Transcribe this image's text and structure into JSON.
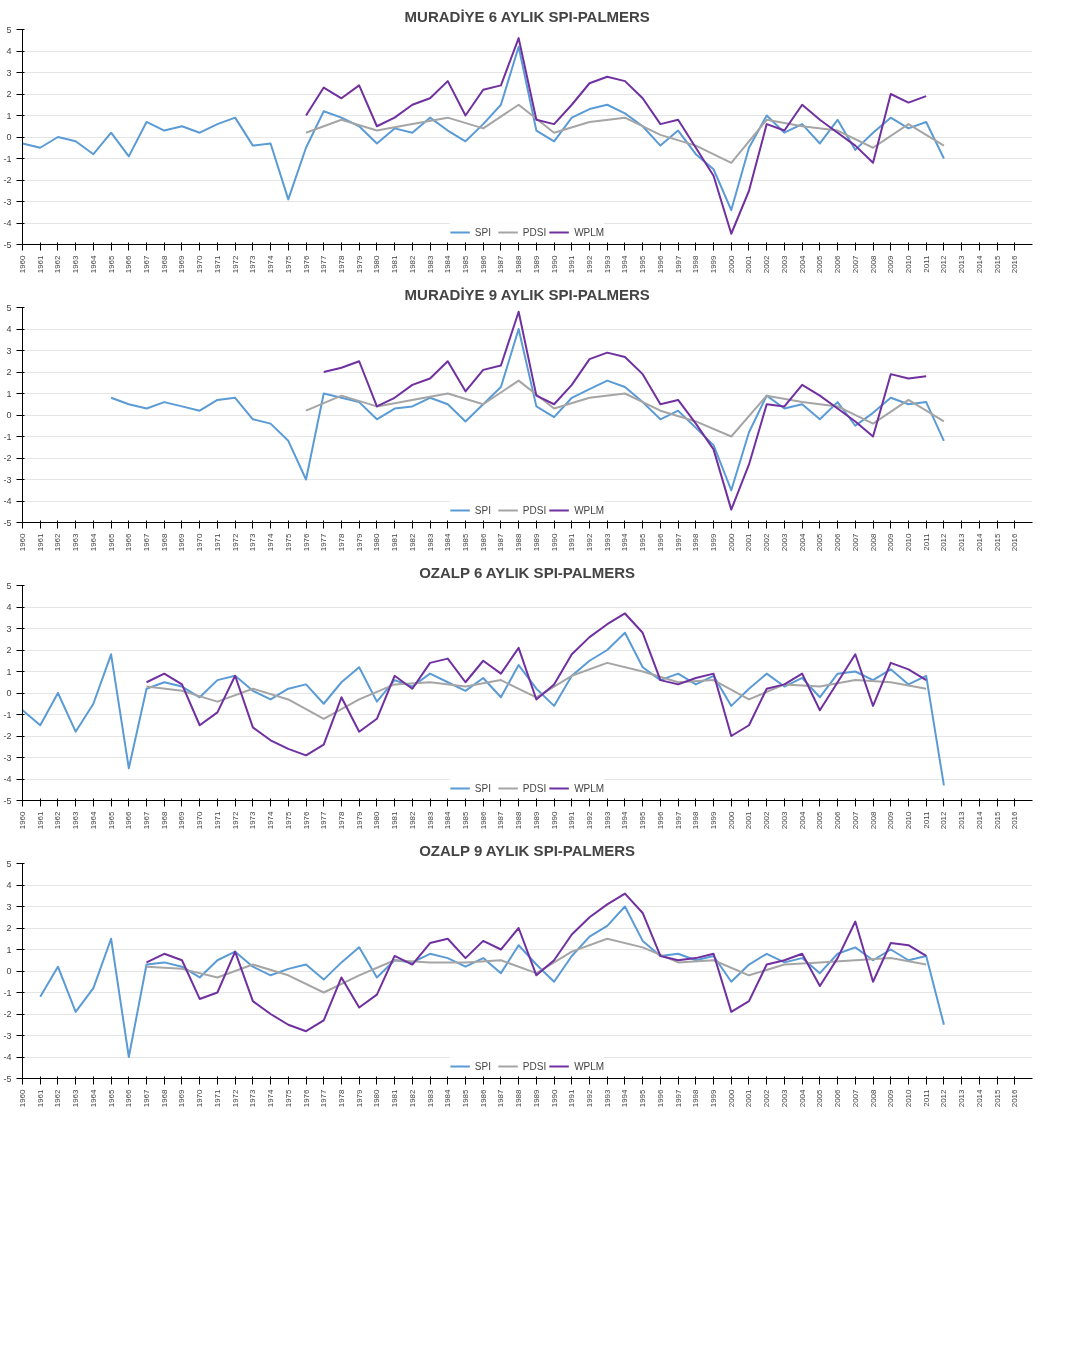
{
  "chart_data": [
    {
      "type": "line",
      "title": "MURADİYE 6 AYLIK SPI-PALMERS",
      "xlim": [
        1960,
        2017
      ],
      "xticks": [
        1960,
        1961,
        1962,
        1963,
        1964,
        1965,
        1966,
        1967,
        1968,
        1969,
        1970,
        1971,
        1972,
        1973,
        1974,
        1975,
        1976,
        1977,
        1978,
        1979,
        1980,
        1981,
        1982,
        1983,
        1984,
        1985,
        1986,
        1987,
        1988,
        1989,
        1990,
        1991,
        1992,
        1993,
        1994,
        1995,
        1996,
        1997,
        1998,
        1999,
        2000,
        2001,
        2002,
        2003,
        2004,
        2005,
        2006,
        2007,
        2008,
        2009,
        2010,
        2011,
        2012,
        2013,
        2014,
        2015,
        2016
      ],
      "ylim": [
        -5,
        5
      ],
      "yticks": [
        -5,
        -4,
        -3,
        -2,
        -1,
        0,
        1,
        2,
        3,
        4,
        5
      ],
      "grid": "y",
      "legend": "bottom",
      "series": [
        {
          "name": "SPI",
          "color": "#5b9bd5",
          "x": [
            1960,
            1961,
            1962,
            1963,
            1964,
            1965,
            1966,
            1967,
            1968,
            1969,
            1970,
            1971,
            1972,
            1973,
            1974,
            1975,
            1976,
            1977,
            1978,
            1979,
            1980,
            1981,
            1982,
            1983,
            1984,
            1985,
            1986,
            1987,
            1988,
            1989,
            1990,
            1991,
            1992,
            1993,
            1994,
            1995,
            1996,
            1997,
            1998,
            1999,
            2000,
            2001,
            2002,
            2003,
            2004,
            2005,
            2006,
            2007,
            2008,
            2009,
            2010,
            2011,
            2012
          ],
          "values": [
            -0.3,
            -0.5,
            0.0,
            -0.2,
            -0.8,
            0.2,
            -0.9,
            0.7,
            0.3,
            0.5,
            0.2,
            0.6,
            0.9,
            -0.4,
            -0.3,
            -2.9,
            -0.5,
            1.2,
            0.9,
            0.5,
            -0.3,
            0.4,
            0.2,
            0.9,
            0.3,
            -0.2,
            0.6,
            1.5,
            4.2,
            0.3,
            -0.2,
            0.9,
            1.3,
            1.5,
            1.1,
            0.5,
            -0.4,
            0.3,
            -0.8,
            -1.5,
            -3.4,
            -0.5,
            1.0,
            0.2,
            0.6,
            -0.3,
            0.8,
            -0.6,
            0.2,
            0.9,
            0.4,
            0.7,
            -1.0
          ]
        },
        {
          "name": "PDSI",
          "color": "#a5a5a5",
          "x": [
            1976,
            1978,
            1980,
            1982,
            1984,
            1986,
            1988,
            1990,
            1992,
            1994,
            1996,
            1998,
            2000,
            2002,
            2004,
            2006,
            2008,
            2010,
            2012
          ],
          "values": [
            0.2,
            0.8,
            0.3,
            0.6,
            0.9,
            0.4,
            1.5,
            0.2,
            0.7,
            0.9,
            0.1,
            -0.4,
            -1.2,
            0.8,
            0.5,
            0.3,
            -0.5,
            0.6,
            -0.4
          ]
        },
        {
          "name": "WPLM",
          "color": "#7030a0",
          "x": [
            1976,
            1977,
            1978,
            1979,
            1980,
            1981,
            1982,
            1983,
            1984,
            1985,
            1986,
            1987,
            1988,
            1989,
            1990,
            1991,
            1992,
            1993,
            1994,
            1995,
            1996,
            1997,
            1998,
            1999,
            2000,
            2001,
            2002,
            2003,
            2004,
            2005,
            2006,
            2007,
            2008,
            2009,
            2010,
            2011
          ],
          "values": [
            1.0,
            2.3,
            1.8,
            2.4,
            0.5,
            0.9,
            1.5,
            1.8,
            2.6,
            1.0,
            2.2,
            2.4,
            4.6,
            0.8,
            0.6,
            1.5,
            2.5,
            2.8,
            2.6,
            1.8,
            0.6,
            0.8,
            -0.5,
            -1.8,
            -4.5,
            -2.5,
            0.6,
            0.3,
            1.5,
            0.8,
            0.2,
            -0.4,
            -1.2,
            2.0,
            1.6,
            1.9
          ]
        }
      ]
    },
    {
      "type": "line",
      "title": "MURADİYE 9 AYLIK SPI-PALMERS",
      "xlim": [
        1960,
        2017
      ],
      "xticks": [
        1960,
        1961,
        1962,
        1963,
        1964,
        1965,
        1966,
        1967,
        1968,
        1969,
        1970,
        1971,
        1972,
        1973,
        1974,
        1975,
        1976,
        1977,
        1978,
        1979,
        1980,
        1981,
        1982,
        1983,
        1984,
        1985,
        1986,
        1987,
        1988,
        1989,
        1990,
        1991,
        1992,
        1993,
        1994,
        1995,
        1996,
        1997,
        1998,
        1999,
        2000,
        2001,
        2002,
        2003,
        2004,
        2005,
        2006,
        2007,
        2008,
        2009,
        2010,
        2011,
        2012,
        2013,
        2014,
        2015,
        2016
      ],
      "ylim": [
        -5,
        5
      ],
      "yticks": [
        -5,
        -4,
        -3,
        -2,
        -1,
        0,
        1,
        2,
        3,
        4,
        5
      ],
      "grid": "y",
      "legend": "bottom",
      "series": [
        {
          "name": "SPI",
          "color": "#5b9bd5",
          "x": [
            1965,
            1966,
            1967,
            1968,
            1969,
            1970,
            1971,
            1972,
            1973,
            1974,
            1975,
            1976,
            1977,
            1978,
            1979,
            1980,
            1981,
            1982,
            1983,
            1984,
            1985,
            1986,
            1987,
            1988,
            1989,
            1990,
            1991,
            1992,
            1993,
            1994,
            1995,
            1996,
            1997,
            1998,
            1999,
            2000,
            2001,
            2002,
            2003,
            2004,
            2005,
            2006,
            2007,
            2008,
            2009,
            2010,
            2011,
            2012
          ],
          "values": [
            0.8,
            0.5,
            0.3,
            0.6,
            0.4,
            0.2,
            0.7,
            0.8,
            -0.2,
            -0.4,
            -1.2,
            -3.0,
            1.0,
            0.8,
            0.6,
            -0.2,
            0.3,
            0.4,
            0.8,
            0.5,
            -0.3,
            0.5,
            1.3,
            4.0,
            0.4,
            -0.1,
            0.8,
            1.2,
            1.6,
            1.3,
            0.6,
            -0.2,
            0.2,
            -0.6,
            -1.4,
            -3.5,
            -0.8,
            0.9,
            0.3,
            0.5,
            -0.2,
            0.6,
            -0.5,
            0.1,
            0.8,
            0.5,
            0.6,
            -1.2
          ]
        },
        {
          "name": "PDSI",
          "color": "#a5a5a5",
          "x": [
            1976,
            1978,
            1980,
            1982,
            1984,
            1986,
            1988,
            1990,
            1992,
            1994,
            1996,
            1998,
            2000,
            2002,
            2004,
            2006,
            2008,
            2010,
            2012
          ],
          "values": [
            0.2,
            0.9,
            0.4,
            0.7,
            1.0,
            0.5,
            1.6,
            0.3,
            0.8,
            1.0,
            0.2,
            -0.3,
            -1.0,
            0.9,
            0.6,
            0.4,
            -0.4,
            0.7,
            -0.3
          ]
        },
        {
          "name": "WPLM",
          "color": "#7030a0",
          "x": [
            1977,
            1978,
            1979,
            1980,
            1981,
            1982,
            1983,
            1984,
            1985,
            1986,
            1987,
            1988,
            1989,
            1990,
            1991,
            1992,
            1993,
            1994,
            1995,
            1996,
            1997,
            1998,
            1999,
            2000,
            2001,
            2002,
            2003,
            2004,
            2005,
            2006,
            2007,
            2008,
            2009,
            2010,
            2011
          ],
          "values": [
            2.0,
            2.2,
            2.5,
            0.4,
            0.8,
            1.4,
            1.7,
            2.5,
            1.1,
            2.1,
            2.3,
            4.8,
            0.9,
            0.5,
            1.4,
            2.6,
            2.9,
            2.7,
            1.9,
            0.5,
            0.7,
            -0.4,
            -1.6,
            -4.4,
            -2.3,
            0.5,
            0.4,
            1.4,
            0.9,
            0.3,
            -0.3,
            -1.0,
            1.9,
            1.7,
            1.8
          ]
        }
      ]
    },
    {
      "type": "line",
      "title": "OZALP 6 AYLIK SPI-PALMERS",
      "xlim": [
        1960,
        2017
      ],
      "xticks": [
        1960,
        1961,
        1962,
        1963,
        1964,
        1965,
        1966,
        1967,
        1968,
        1969,
        1970,
        1971,
        1972,
        1973,
        1974,
        1975,
        1976,
        1977,
        1978,
        1979,
        1980,
        1981,
        1982,
        1983,
        1984,
        1985,
        1986,
        1987,
        1988,
        1989,
        1990,
        1991,
        1992,
        1993,
        1994,
        1995,
        1996,
        1997,
        1998,
        1999,
        2000,
        2001,
        2002,
        2003,
        2004,
        2005,
        2006,
        2007,
        2008,
        2009,
        2010,
        2011,
        2012,
        2013,
        2014,
        2015,
        2016
      ],
      "ylim": [
        -5,
        5
      ],
      "yticks": [
        -5,
        -4,
        -3,
        -2,
        -1,
        0,
        1,
        2,
        3,
        4,
        5
      ],
      "grid": "y",
      "legend": "bottom",
      "series": [
        {
          "name": "SPI",
          "color": "#5b9bd5",
          "x": [
            1960,
            1961,
            1962,
            1963,
            1964,
            1965,
            1966,
            1967,
            1968,
            1969,
            1970,
            1971,
            1972,
            1973,
            1974,
            1975,
            1976,
            1977,
            1978,
            1979,
            1980,
            1981,
            1982,
            1983,
            1984,
            1985,
            1986,
            1987,
            1988,
            1989,
            1990,
            1991,
            1992,
            1993,
            1994,
            1995,
            1996,
            1997,
            1998,
            1999,
            2000,
            2001,
            2002,
            2003,
            2004,
            2005,
            2006,
            2007,
            2008,
            2009,
            2010,
            2011,
            2012
          ],
          "values": [
            -0.8,
            -1.5,
            0.0,
            -1.8,
            -0.5,
            1.8,
            -3.5,
            0.2,
            0.5,
            0.3,
            -0.2,
            0.6,
            0.8,
            0.1,
            -0.3,
            0.2,
            0.4,
            -0.5,
            0.5,
            1.2,
            -0.4,
            0.6,
            0.3,
            0.9,
            0.5,
            0.1,
            0.7,
            -0.2,
            1.3,
            0.2,
            -0.6,
            0.8,
            1.5,
            2.0,
            2.8,
            1.2,
            0.6,
            0.9,
            0.4,
            0.8,
            -0.6,
            0.2,
            0.9,
            0.3,
            0.7,
            -0.2,
            0.9,
            1.0,
            0.6,
            1.1,
            0.4,
            0.8,
            -4.3
          ]
        },
        {
          "name": "PDSI",
          "color": "#a5a5a5",
          "x": [
            1967,
            1969,
            1971,
            1973,
            1975,
            1977,
            1979,
            1981,
            1983,
            1985,
            1987,
            1989,
            1991,
            1993,
            1995,
            1997,
            1999,
            2001,
            2003,
            2005,
            2007,
            2009,
            2011
          ],
          "values": [
            0.3,
            0.1,
            -0.4,
            0.2,
            -0.3,
            -1.2,
            -0.3,
            0.4,
            0.5,
            0.3,
            0.6,
            -0.2,
            0.8,
            1.4,
            1.0,
            0.5,
            0.6,
            -0.3,
            0.4,
            0.3,
            0.6,
            0.5,
            0.2
          ]
        },
        {
          "name": "WPLM",
          "color": "#7030a0",
          "x": [
            1967,
            1968,
            1969,
            1970,
            1971,
            1972,
            1973,
            1974,
            1975,
            1976,
            1977,
            1978,
            1979,
            1980,
            1981,
            1982,
            1983,
            1984,
            1985,
            1986,
            1987,
            1988,
            1989,
            1990,
            1991,
            1992,
            1993,
            1994,
            1995,
            1996,
            1997,
            1998,
            1999,
            2000,
            2001,
            2002,
            2003,
            2004,
            2005,
            2006,
            2007,
            2008,
            2009,
            2010,
            2011
          ],
          "values": [
            0.5,
            0.9,
            0.4,
            -1.5,
            -0.9,
            0.8,
            -1.6,
            -2.2,
            -2.6,
            -2.9,
            -2.4,
            -0.2,
            -1.8,
            -1.2,
            0.8,
            0.2,
            1.4,
            1.6,
            0.5,
            1.5,
            0.9,
            2.1,
            -0.3,
            0.4,
            1.8,
            2.6,
            3.2,
            3.7,
            2.8,
            0.6,
            0.4,
            0.7,
            0.9,
            -2.0,
            -1.5,
            0.2,
            0.4,
            0.9,
            -0.8,
            0.5,
            1.8,
            -0.6,
            1.4,
            1.1,
            0.6
          ]
        }
      ]
    },
    {
      "type": "line",
      "title": "OZALP 9 AYLIK SPI-PALMERS",
      "xlim": [
        1960,
        2017
      ],
      "xticks": [
        1960,
        1961,
        1962,
        1963,
        1964,
        1965,
        1966,
        1967,
        1968,
        1969,
        1970,
        1971,
        1972,
        1973,
        1974,
        1975,
        1976,
        1977,
        1978,
        1979,
        1980,
        1981,
        1982,
        1983,
        1984,
        1985,
        1986,
        1987,
        1988,
        1989,
        1990,
        1991,
        1992,
        1993,
        1994,
        1995,
        1996,
        1997,
        1998,
        1999,
        2000,
        2001,
        2002,
        2003,
        2004,
        2005,
        2006,
        2007,
        2008,
        2009,
        2010,
        2011,
        2012,
        2013,
        2014,
        2015,
        2016
      ],
      "ylim": [
        -5,
        5
      ],
      "yticks": [
        -5,
        -4,
        -3,
        -2,
        -1,
        0,
        1,
        2,
        3,
        4,
        5
      ],
      "grid": "y",
      "legend": "bottom",
      "series": [
        {
          "name": "SPI",
          "color": "#5b9bd5",
          "x": [
            1961,
            1962,
            1963,
            1964,
            1965,
            1966,
            1967,
            1968,
            1969,
            1970,
            1971,
            1972,
            1973,
            1974,
            1975,
            1976,
            1977,
            1978,
            1979,
            1980,
            1981,
            1982,
            1983,
            1984,
            1985,
            1986,
            1987,
            1988,
            1989,
            1990,
            1991,
            1992,
            1993,
            1994,
            1995,
            1996,
            1997,
            1998,
            1999,
            2000,
            2001,
            2002,
            2003,
            2004,
            2005,
            2006,
            2007,
            2008,
            2009,
            2010,
            2011,
            2012
          ],
          "values": [
            -1.2,
            0.2,
            -1.9,
            -0.8,
            1.5,
            -4.0,
            0.3,
            0.4,
            0.2,
            -0.3,
            0.5,
            0.9,
            0.2,
            -0.2,
            0.1,
            0.3,
            -0.4,
            0.4,
            1.1,
            -0.3,
            0.5,
            0.4,
            0.8,
            0.6,
            0.2,
            0.6,
            -0.1,
            1.2,
            0.3,
            -0.5,
            0.7,
            1.6,
            2.1,
            3.0,
            1.4,
            0.7,
            0.8,
            0.5,
            0.7,
            -0.5,
            0.3,
            0.8,
            0.4,
            0.6,
            -0.1,
            0.8,
            1.1,
            0.5,
            1.0,
            0.5,
            0.7,
            -2.5
          ]
        },
        {
          "name": "PDSI",
          "color": "#a5a5a5",
          "x": [
            1967,
            1969,
            1971,
            1973,
            1975,
            1977,
            1979,
            1981,
            1983,
            1985,
            1987,
            1989,
            1991,
            1993,
            1995,
            1997,
            1999,
            2001,
            2003,
            2005,
            2007,
            2009,
            2011
          ],
          "values": [
            0.2,
            0.1,
            -0.3,
            0.3,
            -0.2,
            -1.0,
            -0.2,
            0.5,
            0.4,
            0.4,
            0.5,
            -0.1,
            0.9,
            1.5,
            1.1,
            0.4,
            0.5,
            -0.2,
            0.3,
            0.4,
            0.5,
            0.6,
            0.3
          ]
        },
        {
          "name": "WPLM",
          "color": "#7030a0",
          "x": [
            1967,
            1968,
            1969,
            1970,
            1971,
            1972,
            1973,
            1974,
            1975,
            1976,
            1977,
            1978,
            1979,
            1980,
            1981,
            1982,
            1983,
            1984,
            1985,
            1986,
            1987,
            1988,
            1989,
            1990,
            1991,
            1992,
            1993,
            1994,
            1995,
            1996,
            1997,
            1998,
            1999,
            2000,
            2001,
            2002,
            2003,
            2004,
            2005,
            2006,
            2007,
            2008,
            2009,
            2010,
            2011
          ],
          "values": [
            0.4,
            0.8,
            0.5,
            -1.3,
            -1.0,
            0.9,
            -1.4,
            -2.0,
            -2.5,
            -2.8,
            -2.3,
            -0.3,
            -1.7,
            -1.1,
            0.7,
            0.3,
            1.3,
            1.5,
            0.6,
            1.4,
            1.0,
            2.0,
            -0.2,
            0.5,
            1.7,
            2.5,
            3.1,
            3.6,
            2.7,
            0.7,
            0.5,
            0.6,
            0.8,
            -1.9,
            -1.4,
            0.3,
            0.5,
            0.8,
            -0.7,
            0.6,
            2.3,
            -0.5,
            1.3,
            1.2,
            0.7
          ]
        }
      ]
    }
  ]
}
